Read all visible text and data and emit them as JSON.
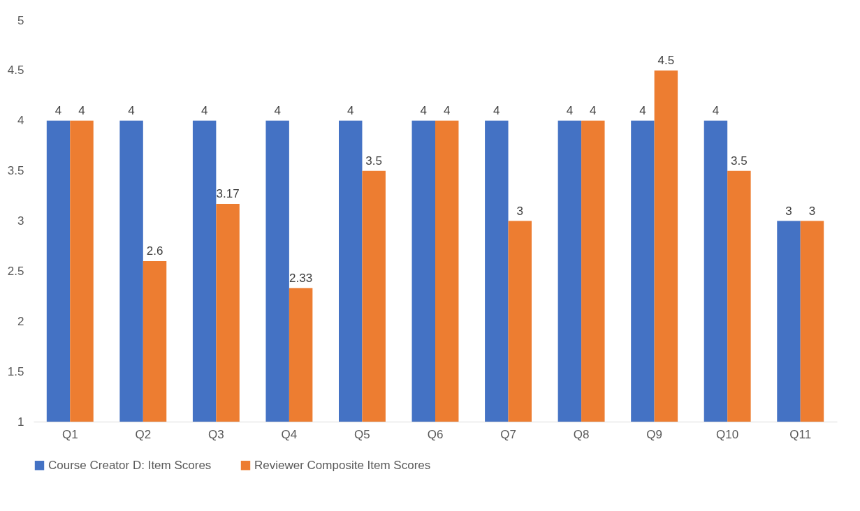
{
  "chart_data": {
    "type": "bar",
    "categories": [
      "Q1",
      "Q2",
      "Q3",
      "Q4",
      "Q5",
      "Q6",
      "Q7",
      "Q8",
      "Q9",
      "Q10",
      "Q11"
    ],
    "series": [
      {
        "name": "Course Creator D: Item Scores",
        "color": "#4472c4",
        "values": [
          4,
          4,
          4,
          4,
          4,
          4,
          4,
          4,
          4,
          4,
          3
        ]
      },
      {
        "name": "Reviewer Composite Item Scores",
        "color": "#ed7d31",
        "values": [
          4,
          2.6,
          3.17,
          2.33,
          3.5,
          4,
          3,
          4,
          4.5,
          3.5,
          3
        ]
      }
    ],
    "ylim": [
      1,
      5
    ],
    "yticks": [
      1,
      1.5,
      2,
      2.5,
      3,
      3.5,
      4,
      4.5,
      5
    ],
    "data_labels": true,
    "grid": false,
    "legend": "bottom"
  }
}
